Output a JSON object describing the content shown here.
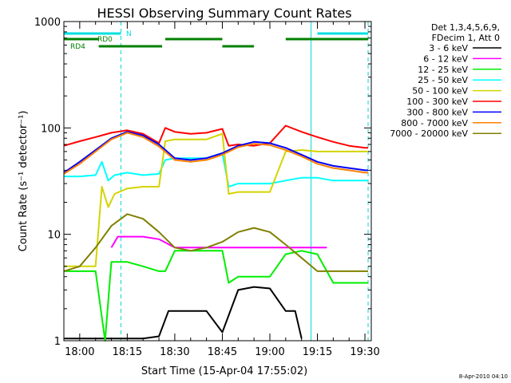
{
  "chart_data": {
    "type": "line",
    "title": "HESSI Observing Summary Count Rates",
    "xlabel": "Start Time (15-Apr-04 17:55:02)",
    "ylabel": "Count Rate (s⁻¹ detector⁻¹)",
    "y_scale": "log",
    "ylim": [
      1,
      1000
    ],
    "xlim": [
      "17:55",
      "19:32"
    ],
    "x_ticks": [
      "18:00",
      "18:15",
      "18:30",
      "18:45",
      "19:00",
      "19:15",
      "19:30"
    ],
    "y_ticks": [
      "1",
      "10",
      "100",
      "1000"
    ],
    "grid": false,
    "legend_header": [
      "Det 1,3,4,5,6,9,",
      "FDecim 1, Att 0"
    ],
    "legend_position": "right",
    "timestamp": "8-Apr-2010 04:10",
    "vertical_markers": {
      "solid": [
        "17:55",
        "19:13"
      ],
      "dashed": [
        "18:13",
        "19:31"
      ]
    },
    "flag_bars": [
      {
        "label": "N",
        "color": "#00e0e0",
        "segments": [
          [
            "17:55",
            "18:13"
          ],
          [
            "19:15",
            "19:31"
          ]
        ]
      },
      {
        "label": "RD0",
        "color": "#008000",
        "segments": [
          [
            "17:55",
            "18:06"
          ],
          [
            "18:27",
            "18:45"
          ],
          [
            "19:05",
            "19:31"
          ]
        ]
      },
      {
        "label": "RD4",
        "color": "#008000",
        "segments": [
          [
            "18:06",
            "18:26"
          ],
          [
            "18:45",
            "18:55"
          ]
        ]
      }
    ],
    "series": [
      {
        "name": "3 - 6 keV",
        "color": "#000000",
        "x": [
          "17:55",
          "18:00",
          "18:05",
          "18:10",
          "18:15",
          "18:20",
          "18:25",
          "18:28",
          "18:30",
          "18:35",
          "18:40",
          "18:45",
          "18:50",
          "18:55",
          "19:00",
          "19:05",
          "19:08",
          "19:10"
        ],
        "values": [
          1.05,
          1.05,
          1.05,
          1.05,
          1.05,
          1.05,
          1.1,
          1.9,
          1.9,
          1.9,
          1.9,
          1.2,
          3,
          3.2,
          3.1,
          1.9,
          1.9,
          1.05
        ]
      },
      {
        "name": "6 - 12 keV",
        "color": "#ff00ff",
        "x": [
          "18:10",
          "18:12",
          "18:15",
          "18:20",
          "18:25",
          "18:30",
          "18:35",
          "18:40",
          "18:45",
          "18:50",
          "18:55",
          "19:00",
          "19:05",
          "19:10",
          "19:15",
          "19:18"
        ],
        "values": [
          7.5,
          9.5,
          9.5,
          9.5,
          9,
          7.5,
          7.5,
          7.5,
          7.5,
          7.5,
          7.5,
          7.5,
          7.5,
          7.5,
          7.5,
          7.5
        ]
      },
      {
        "name": "12 - 25 keV",
        "color": "#00ee00",
        "x": [
          "17:55",
          "18:00",
          "18:05",
          "18:08",
          "18:10",
          "18:15",
          "18:20",
          "18:25",
          "18:27",
          "18:30",
          "18:35",
          "18:40",
          "18:45",
          "18:47",
          "18:50",
          "18:55",
          "19:00",
          "19:05",
          "19:10",
          "19:15",
          "19:20",
          "19:25",
          "19:30",
          "19:31"
        ],
        "values": [
          4.5,
          4.5,
          4.5,
          1,
          5.5,
          5.5,
          5,
          4.5,
          4.5,
          7,
          7,
          7,
          7,
          3.5,
          4,
          4,
          4,
          6.5,
          7,
          6.5,
          3.5,
          3.5,
          3.5,
          3.5
        ]
      },
      {
        "name": "25 - 50 keV",
        "color": "#00ffff",
        "x": [
          "17:55",
          "18:00",
          "18:05",
          "18:07",
          "18:09",
          "18:11",
          "18:15",
          "18:20",
          "18:25",
          "18:27",
          "18:30",
          "18:35",
          "18:40",
          "18:45",
          "18:47",
          "18:50",
          "18:55",
          "19:00",
          "19:05",
          "19:10",
          "19:15",
          "19:20",
          "19:25",
          "19:30",
          "19:31"
        ],
        "values": [
          35,
          35,
          36,
          48,
          32,
          36,
          38,
          36,
          37,
          50,
          52,
          52,
          52,
          58,
          28,
          30,
          30,
          30,
          32,
          34,
          34,
          32,
          32,
          32,
          32
        ]
      },
      {
        "name": "50 - 100 keV",
        "color": "#d4d400",
        "x": [
          "17:55",
          "18:00",
          "18:05",
          "18:07",
          "18:09",
          "18:11",
          "18:15",
          "18:20",
          "18:25",
          "18:27",
          "18:30",
          "18:35",
          "18:40",
          "18:45",
          "18:47",
          "18:50",
          "18:55",
          "19:00",
          "19:05",
          "19:10",
          "19:15",
          "19:20",
          "19:25",
          "19:30",
          "19:31"
        ],
        "values": [
          5,
          5,
          5,
          28,
          18,
          24,
          27,
          28,
          28,
          75,
          78,
          78,
          78,
          88,
          24,
          25,
          25,
          25,
          60,
          62,
          60,
          60,
          60,
          60,
          60
        ]
      },
      {
        "name": "100 - 300 keV",
        "color": "#ff0000",
        "x": [
          "17:55",
          "18:00",
          "18:05",
          "18:10",
          "18:15",
          "18:20",
          "18:25",
          "18:27",
          "18:30",
          "18:35",
          "18:40",
          "18:45",
          "18:47",
          "18:50",
          "18:55",
          "19:00",
          "19:05",
          "19:10",
          "19:15",
          "19:20",
          "19:25",
          "19:30",
          "19:31"
        ],
        "values": [
          68,
          75,
          82,
          90,
          95,
          88,
          72,
          100,
          92,
          88,
          90,
          98,
          68,
          70,
          68,
          72,
          105,
          92,
          82,
          74,
          68,
          65,
          65
        ]
      },
      {
        "name": "300 - 800 keV",
        "color": "#0000ff",
        "x": [
          "17:55",
          "18:00",
          "18:05",
          "18:10",
          "18:15",
          "18:20",
          "18:25",
          "18:30",
          "18:35",
          "18:40",
          "18:45",
          "18:50",
          "18:55",
          "19:00",
          "19:05",
          "19:10",
          "19:15",
          "19:20",
          "19:25",
          "19:30",
          "19:31"
        ],
        "values": [
          38,
          48,
          62,
          80,
          92,
          85,
          70,
          52,
          50,
          52,
          58,
          68,
          74,
          72,
          65,
          56,
          48,
          44,
          42,
          40,
          40
        ]
      },
      {
        "name": "800 - 7000 keV",
        "color": "#ff8000",
        "x": [
          "17:55",
          "18:00",
          "18:05",
          "18:10",
          "18:15",
          "18:20",
          "18:25",
          "18:30",
          "18:35",
          "18:40",
          "18:45",
          "18:50",
          "18:55",
          "19:00",
          "19:05",
          "19:10",
          "19:15",
          "19:20",
          "19:25",
          "19:30",
          "19:31"
        ],
        "values": [
          37,
          46,
          60,
          78,
          90,
          82,
          67,
          50,
          48,
          50,
          56,
          66,
          71,
          69,
          62,
          54,
          46,
          42,
          40,
          38,
          38
        ]
      },
      {
        "name": "7000 - 20000 keV",
        "color": "#808000",
        "x": [
          "17:55",
          "18:00",
          "18:05",
          "18:10",
          "18:15",
          "18:20",
          "18:25",
          "18:30",
          "18:35",
          "18:40",
          "18:45",
          "18:50",
          "18:55",
          "19:00",
          "19:05",
          "19:10",
          "19:15",
          "19:20",
          "19:25",
          "19:30",
          "19:31"
        ],
        "values": [
          4.5,
          5,
          7.5,
          12,
          15.5,
          14,
          10.5,
          7.5,
          7,
          7.5,
          8.5,
          10.5,
          11.5,
          10.5,
          8,
          6,
          4.5,
          4.5,
          4.5,
          4.5,
          4.5
        ]
      }
    ]
  }
}
